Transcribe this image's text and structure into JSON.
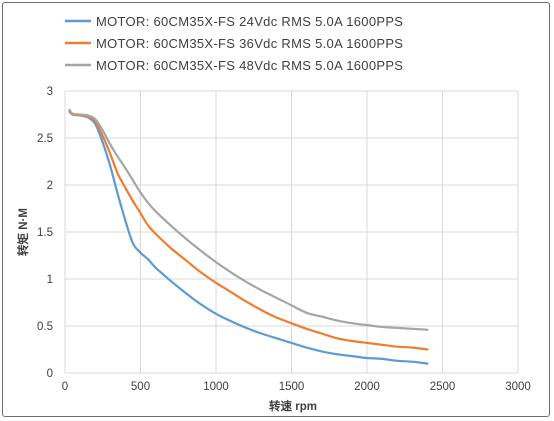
{
  "chart_data": {
    "type": "line",
    "title": "",
    "xlabel": "转速 rpm",
    "ylabel": "转矩 N·M",
    "xlim": [
      0,
      3000
    ],
    "ylim": [
      0,
      3
    ],
    "xticks": [
      0,
      500,
      1000,
      1500,
      2000,
      2500,
      3000
    ],
    "yticks": [
      0,
      0.5,
      1,
      1.5,
      2,
      2.5,
      3
    ],
    "xtick_labels": [
      "0",
      "500",
      "1000",
      "1500",
      "2000",
      "2500",
      "3000"
    ],
    "ytick_labels": [
      "0",
      "0.5",
      "1",
      "1.5",
      "2",
      "2.5",
      "3"
    ],
    "grid": "vertical and horizontal",
    "legend_position": "top-left",
    "series": [
      {
        "name": "MOTOR: 60CM35X-FS  24Vdc  RMS 5.0A  1600PPS",
        "color": "#5B9BD5",
        "x": [
          30,
          50,
          100,
          150,
          200,
          250,
          300,
          350,
          400,
          450,
          500,
          550,
          600,
          700,
          800,
          900,
          1000,
          1100,
          1200,
          1300,
          1400,
          1500,
          1600,
          1700,
          1800,
          1900,
          2000,
          2100,
          2200,
          2300,
          2400
        ],
        "y": [
          2.78,
          2.75,
          2.74,
          2.72,
          2.65,
          2.45,
          2.2,
          1.9,
          1.62,
          1.38,
          1.28,
          1.21,
          1.12,
          0.98,
          0.85,
          0.73,
          0.63,
          0.55,
          0.48,
          0.42,
          0.37,
          0.32,
          0.27,
          0.23,
          0.2,
          0.18,
          0.16,
          0.15,
          0.13,
          0.12,
          0.1
        ]
      },
      {
        "name": "MOTOR: 60CM35X-FS  36Vdc  RMS 5.0A  1600PPS",
        "color": "#ED7D31",
        "x": [
          30,
          50,
          100,
          150,
          200,
          250,
          300,
          350,
          400,
          450,
          500,
          550,
          600,
          700,
          800,
          900,
          1000,
          1100,
          1200,
          1300,
          1400,
          1500,
          1600,
          1700,
          1800,
          1900,
          2000,
          2100,
          2200,
          2300,
          2400
        ],
        "y": [
          2.78,
          2.75,
          2.74,
          2.73,
          2.68,
          2.52,
          2.33,
          2.12,
          1.97,
          1.83,
          1.7,
          1.57,
          1.48,
          1.33,
          1.2,
          1.07,
          0.96,
          0.86,
          0.76,
          0.67,
          0.59,
          0.53,
          0.47,
          0.42,
          0.37,
          0.34,
          0.32,
          0.3,
          0.28,
          0.27,
          0.25
        ]
      },
      {
        "name": "MOTOR: 60CM35X-FS  48Vdc  RMS 5.0A  1600PPS",
        "color": "#A5A5A5",
        "x": [
          30,
          50,
          100,
          150,
          200,
          250,
          300,
          350,
          400,
          450,
          500,
          550,
          600,
          700,
          800,
          900,
          1000,
          1100,
          1200,
          1300,
          1400,
          1500,
          1600,
          1700,
          1800,
          1900,
          2000,
          2100,
          2200,
          2300,
          2400
        ],
        "y": [
          2.8,
          2.76,
          2.75,
          2.74,
          2.7,
          2.58,
          2.43,
          2.3,
          2.18,
          2.05,
          1.92,
          1.81,
          1.72,
          1.57,
          1.43,
          1.3,
          1.18,
          1.07,
          0.97,
          0.88,
          0.8,
          0.72,
          0.64,
          0.6,
          0.56,
          0.53,
          0.51,
          0.49,
          0.48,
          0.47,
          0.46
        ]
      }
    ]
  }
}
